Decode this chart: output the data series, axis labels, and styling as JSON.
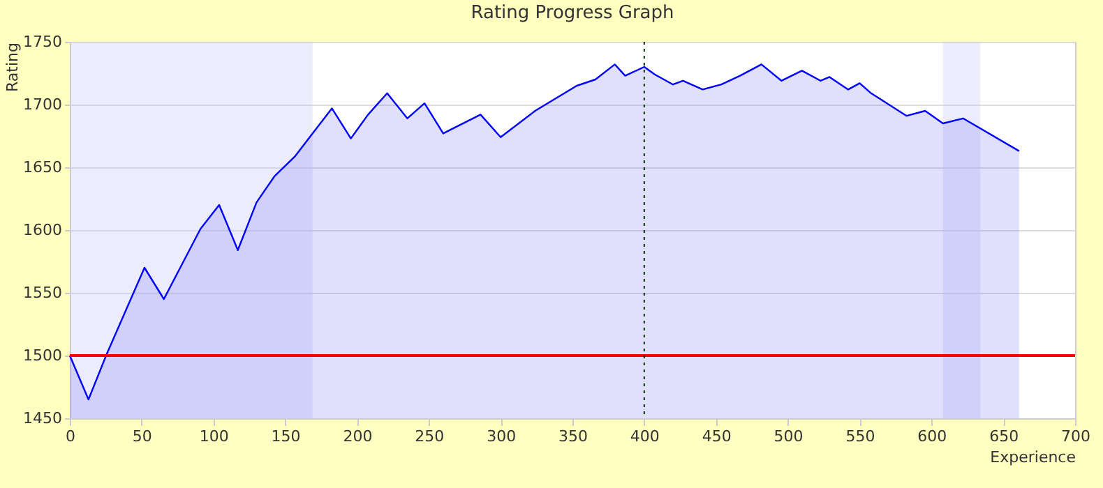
{
  "chart_data": {
    "type": "area",
    "title": "Rating Progress Graph",
    "xlabel": "Experience",
    "ylabel": "Rating",
    "x": [
      0,
      13,
      26,
      52,
      65.5,
      91,
      104,
      117,
      130,
      142.6,
      157,
      169,
      182.5,
      195.7,
      207.7,
      221,
      235,
      247,
      260,
      286,
      300,
      324,
      353,
      366,
      379.5,
      386.7,
      400,
      407.3,
      420,
      427,
      440.7,
      453.7,
      466.7,
      481.6,
      495.5,
      509.8,
      522.7,
      529,
      542,
      550,
      558,
      582.7,
      595.6,
      608,
      622,
      661
    ],
    "series": [
      {
        "color": "#0000ff",
        "values": [
          1500,
          1465,
          1502,
          1570,
          1545,
          1601,
          1620,
          1584,
          1622,
          1643,
          1659,
          1677,
          1697,
          1673,
          1692,
          1709,
          1689,
          1701,
          1677,
          1692,
          1674,
          1695,
          1715,
          1720,
          1732,
          1723,
          1730,
          1724,
          1716,
          1719,
          1712,
          1716,
          1723,
          1732,
          1719,
          1727,
          1719,
          1722,
          1712,
          1717,
          1709,
          1691,
          1695,
          1685,
          1689,
          1663
        ]
      }
    ],
    "xlim": [
      0,
      700
    ],
    "xticks": [
      0,
      50,
      100,
      150,
      200,
      250,
      300,
      350,
      400,
      450,
      500,
      550,
      600,
      650,
      700
    ],
    "ylim": [
      1450,
      1750
    ],
    "yticks": [
      1450,
      1500,
      1550,
      1600,
      1650,
      1700,
      1750
    ],
    "grid": "y",
    "ref_lines": [
      {
        "axis": "y",
        "value": 1500,
        "color": "#ff0000",
        "line_style": "solid"
      },
      {
        "axis": "x",
        "value": 400,
        "color": "#003300",
        "line_style": "dotted"
      }
    ],
    "bands": [
      {
        "axis": "x",
        "from": 0,
        "to": 169,
        "color": "#c8c8f8"
      },
      {
        "axis": "x",
        "from": 608,
        "to": 634,
        "color": "#c8c8f8"
      }
    ]
  }
}
